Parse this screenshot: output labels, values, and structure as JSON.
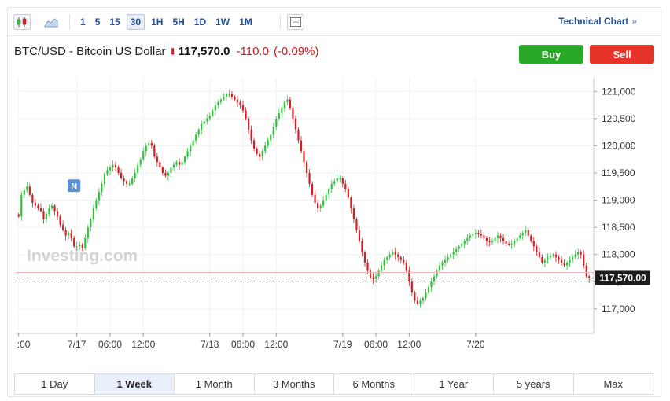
{
  "toolbar": {
    "intervals": [
      "1",
      "5",
      "15",
      "30",
      "1H",
      "5H",
      "1D",
      "1W",
      "1M"
    ],
    "active_interval": "30",
    "technical_link": "Technical Chart",
    "technical_arrow": "»"
  },
  "quote": {
    "symbol": "BTC/USD - Bitcoin US Dollar",
    "direction_icon": "down-arrow-icon",
    "price": "117,570.0",
    "change": "-110.0",
    "change_pct": "(-0.09%)",
    "down_color": "#d0161e"
  },
  "buttons": {
    "buy": "Buy",
    "sell": "Sell",
    "buy_color": "#2aa928",
    "sell_color": "#e5332a"
  },
  "ranges": [
    "1 Day",
    "1 Week",
    "1 Month",
    "3 Months",
    "6 Months",
    "1 Year",
    "5 years",
    "Max"
  ],
  "active_range": "1 Week",
  "chart_data": {
    "type": "candlestick",
    "watermark": "Investing.com",
    "marker_label": "N",
    "last_price_label": "117,570.00",
    "last_price": 117570,
    "ylim": [
      116550,
      121250
    ],
    "y_ticks": [
      117000,
      117500,
      118000,
      118500,
      119000,
      119500,
      120000,
      120500,
      121000
    ],
    "y_tick_labels": [
      "117,000",
      "117,500",
      "118,000",
      "118,500",
      "119,000",
      "119,500",
      "120,000",
      "120,500",
      "121,000"
    ],
    "x_tick_labels": [
      ":00",
      "7/17",
      "06:00",
      "12:00",
      "7/18",
      "06:00",
      "12:00",
      "7/19",
      "06:00",
      "12:00",
      "7/20"
    ],
    "x_tick_index": [
      0,
      21,
      33,
      45,
      69,
      81,
      93,
      117,
      129,
      141,
      165
    ],
    "up_color": "#2ec43a",
    "down_color": "#d91c22",
    "series": [
      {
        "name": "close",
        "values": [
          118700,
          119100,
          119180,
          119250,
          119100,
          118950,
          118900,
          118860,
          118800,
          118650,
          118750,
          118850,
          118900,
          118800,
          118700,
          118550,
          118450,
          118350,
          118400,
          118300,
          118150,
          118150,
          118180,
          118120,
          118300,
          118500,
          118650,
          118850,
          119000,
          119150,
          119300,
          119480,
          119550,
          119600,
          119650,
          119600,
          119500,
          119400,
          119350,
          119300,
          119300,
          119400,
          119500,
          119650,
          119750,
          119900,
          120000,
          120050,
          120000,
          119800,
          119700,
          119600,
          119500,
          119450,
          119500,
          119600,
          119650,
          119700,
          119650,
          119700,
          119800,
          119900,
          120000,
          120100,
          120200,
          120300,
          120400,
          120450,
          120500,
          120550,
          120650,
          120750,
          120800,
          120850,
          120900,
          120950,
          120950,
          120900,
          120850,
          120800,
          120750,
          120650,
          120500,
          120300,
          120100,
          119950,
          119850,
          119800,
          119900,
          120000,
          120100,
          120200,
          120350,
          120500,
          120600,
          120700,
          120800,
          120850,
          120700,
          120500,
          120300,
          120100,
          119900,
          119700,
          119500,
          119300,
          119100,
          118950,
          118850,
          118900,
          119000,
          119100,
          119200,
          119300,
          119350,
          119400,
          119400,
          119300,
          119200,
          119050,
          118850,
          118650,
          118450,
          118250,
          118050,
          117850,
          117700,
          117580,
          117550,
          117600,
          117700,
          117800,
          117900,
          117950,
          118000,
          118050,
          118000,
          117950,
          117900,
          117850,
          117700,
          117500,
          117300,
          117150,
          117100,
          117150,
          117200,
          117300,
          117400,
          117500,
          117600,
          117700,
          117800,
          117850,
          117900,
          117950,
          118000,
          118050,
          118100,
          118150,
          118200,
          118250,
          118300,
          118350,
          118380,
          118400,
          118380,
          118350,
          118300,
          118250,
          118230,
          118250,
          118300,
          118350,
          118300,
          118250,
          118200,
          118180,
          118200,
          118250,
          118300,
          118350,
          118400,
          118450,
          118350,
          118250,
          118150,
          118050,
          117950,
          117850,
          117900,
          117950,
          117980,
          118000,
          117950,
          117900,
          117850,
          117800,
          117850,
          117900,
          117950,
          118000,
          118050,
          118000,
          117800,
          117600,
          117570
        ]
      }
    ]
  }
}
